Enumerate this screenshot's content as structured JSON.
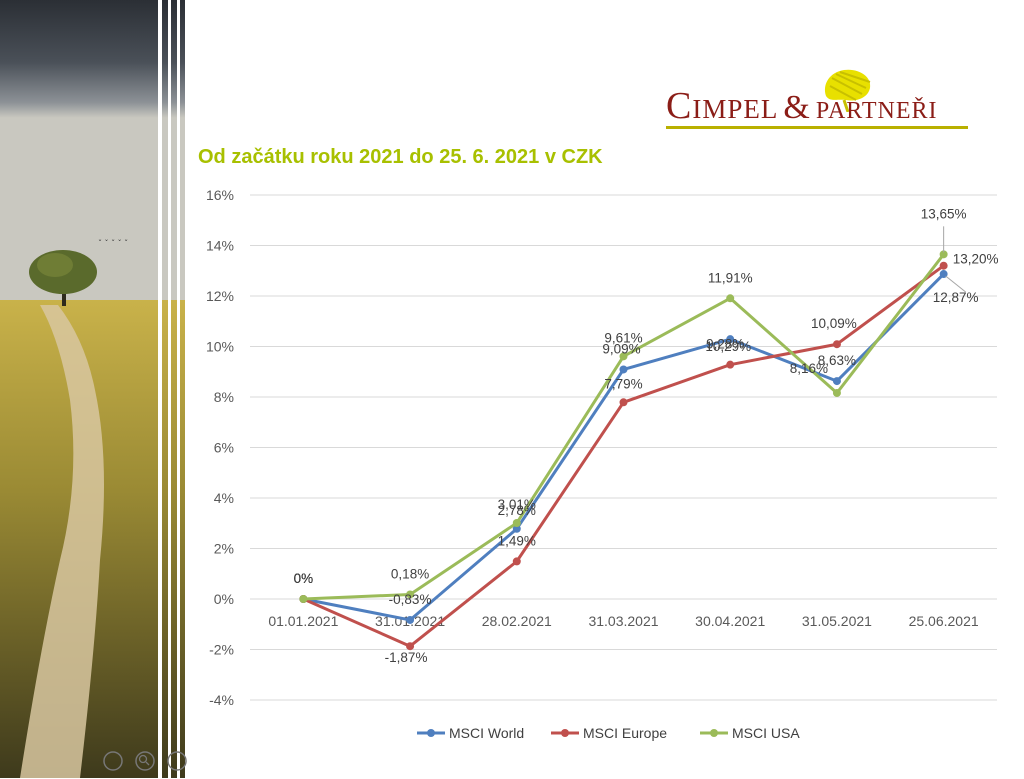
{
  "logo": {
    "brand_part1": "Cimpel",
    "brand_amp": "&",
    "brand_part2": "partneři"
  },
  "title": "Od začátku roku 2021 do 25. 6. 2021 v CZK",
  "colors": {
    "world": "#4f7fbf",
    "europe": "#c0504d",
    "usa": "#9bbb59",
    "title": "#a8c000",
    "brand": "#8b1d17"
  },
  "chart_data": {
    "type": "line",
    "categories": [
      "01.01.2021",
      "31.01.2021",
      "28.02.2021",
      "31.03.2021",
      "30.04.2021",
      "31.05.2021",
      "25.06.2021"
    ],
    "y_ticks": [
      "16%",
      "14%",
      "12%",
      "10%",
      "8%",
      "6%",
      "4%",
      "2%",
      "0%",
      "-2%",
      "-4%"
    ],
    "ylim": [
      -4,
      16
    ],
    "grid": true,
    "legend": "bottom",
    "series": [
      {
        "name": "MSCI World",
        "values": [
          0,
          -0.83,
          2.78,
          9.09,
          10.29,
          8.63,
          12.87
        ],
        "labels": [
          "0%",
          "-0,83%",
          "2,78%",
          "9,09%",
          "10,29%",
          "8,63%",
          "12,87%"
        ]
      },
      {
        "name": "MSCI Europe",
        "values": [
          0,
          -1.87,
          1.49,
          7.79,
          9.28,
          10.09,
          13.2
        ],
        "labels": [
          "0%",
          "-1,87%",
          "1,49%",
          "7,79%",
          "9,28%",
          "10,09%",
          "13,20%"
        ]
      },
      {
        "name": "MSCI USA",
        "values": [
          0,
          0.18,
          3.01,
          9.61,
          11.91,
          8.16,
          13.65
        ],
        "labels": [
          "0%",
          "0,18%",
          "3,01%",
          "9,61%",
          "11,91%",
          "8,16%",
          "13,65%"
        ]
      }
    ]
  }
}
